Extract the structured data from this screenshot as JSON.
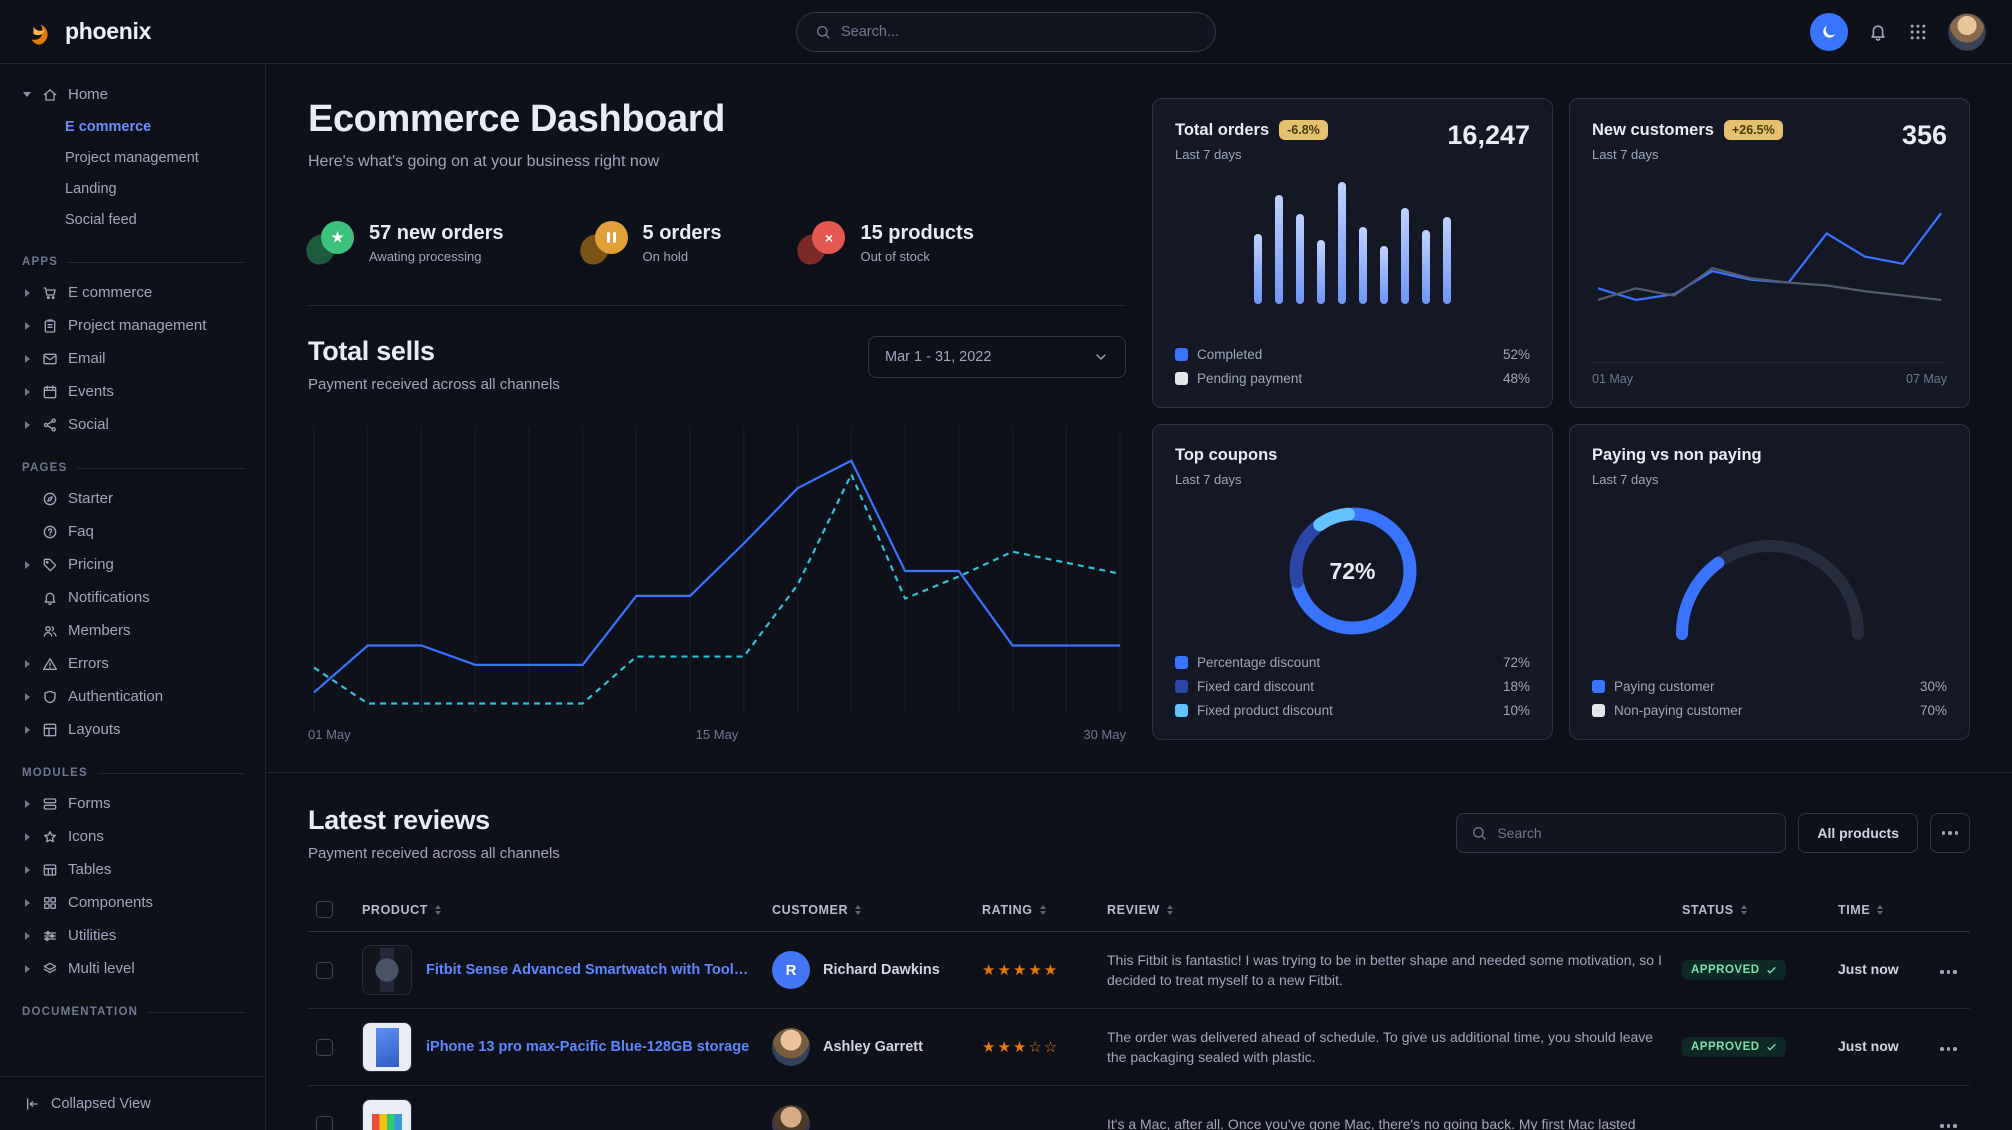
{
  "brand": {
    "name": "phoenix"
  },
  "topbar": {
    "search_placeholder": "Search..."
  },
  "page": {
    "title": "Ecommerce Dashboard",
    "subtitle": "Here's what's going on at your business right now"
  },
  "sidebar": {
    "sections": [
      {
        "label": "",
        "items": [
          {
            "label": "Home",
            "icon": "home",
            "caret": "down",
            "children": [
              {
                "label": "E commerce",
                "active": true
              },
              {
                "label": "Project management"
              },
              {
                "label": "Landing"
              },
              {
                "label": "Social feed"
              }
            ]
          }
        ]
      },
      {
        "label": "APPS",
        "items": [
          {
            "label": "E commerce",
            "icon": "cart",
            "caret": "right"
          },
          {
            "label": "Project management",
            "icon": "clipboard",
            "caret": "right"
          },
          {
            "label": "Email",
            "icon": "mail",
            "caret": "right"
          },
          {
            "label": "Events",
            "icon": "calendar",
            "caret": "right"
          },
          {
            "label": "Social",
            "icon": "share",
            "caret": "right"
          }
        ]
      },
      {
        "label": "PAGES",
        "items": [
          {
            "label": "Starter",
            "icon": "compass"
          },
          {
            "label": "Faq",
            "icon": "help"
          },
          {
            "label": "Pricing",
            "icon": "tag",
            "caret": "right"
          },
          {
            "label": "Notifications",
            "icon": "bell"
          },
          {
            "label": "Members",
            "icon": "users"
          },
          {
            "label": "Errors",
            "icon": "warning",
            "caret": "right"
          },
          {
            "label": "Authentication",
            "icon": "shield",
            "caret": "right"
          },
          {
            "label": "Layouts",
            "icon": "layout",
            "caret": "right"
          }
        ]
      },
      {
        "label": "MODULES",
        "items": [
          {
            "label": "Forms",
            "icon": "form",
            "caret": "right"
          },
          {
            "label": "Icons",
            "icon": "star",
            "caret": "right"
          },
          {
            "label": "Tables",
            "icon": "table",
            "caret": "right"
          },
          {
            "label": "Components",
            "icon": "grid",
            "caret": "right"
          },
          {
            "label": "Utilities",
            "icon": "sliders",
            "caret": "right"
          },
          {
            "label": "Multi level",
            "icon": "layers",
            "caret": "right"
          }
        ]
      },
      {
        "label": "DOCUMENTATION",
        "items": []
      }
    ],
    "footer": {
      "label": "Collapsed View",
      "icon": "collapse"
    }
  },
  "stats": [
    {
      "icon": "star",
      "color": "green",
      "title": "57 new orders",
      "subtitle": "Awating processing"
    },
    {
      "icon": "pause",
      "color": "orange",
      "title": "5 orders",
      "subtitle": "On hold"
    },
    {
      "icon": "x",
      "color": "red",
      "title": "15 products",
      "subtitle": "Out of stock"
    }
  ],
  "total_sells": {
    "title": "Total sells",
    "subtitle": "Payment received across all channels",
    "date_range": "Mar 1 - 31, 2022"
  },
  "cards": {
    "total_orders": {
      "title": "Total orders",
      "badge": "-6.8%",
      "period": "Last 7 days",
      "value": "16,247"
    },
    "new_customers": {
      "title": "New customers",
      "badge": "+26.5%",
      "period": "Last 7 days",
      "value": "356"
    },
    "top_coupons": {
      "title": "Top coupons",
      "period": "Last 7 days"
    },
    "paying": {
      "title": "Paying vs non paying",
      "period": "Last 7 days"
    }
  },
  "chart_data": [
    {
      "id": "total_sells",
      "type": "line",
      "title": "Total sells",
      "x_ticks": [
        "01 May",
        "15 May",
        "30 May"
      ],
      "ylim": [
        0,
        100
      ],
      "grid": "vertical",
      "series": [
        {
          "name": "current period",
          "style": "solid",
          "color": "#3874ff",
          "values": [
            6,
            23,
            23,
            16,
            16,
            16,
            41,
            41,
            60,
            80,
            90,
            50,
            50,
            23,
            23,
            23
          ]
        },
        {
          "name": "previous period",
          "style": "dashed",
          "color": "#2fc0d8",
          "values": [
            15,
            2,
            2,
            2,
            2,
            2,
            19,
            19,
            19,
            45,
            85,
            40,
            48,
            57,
            53,
            49
          ]
        }
      ]
    },
    {
      "id": "total_orders",
      "type": "bar",
      "ylim": [
        0,
        100
      ],
      "values": [
        55,
        85,
        70,
        50,
        95,
        60,
        45,
        75,
        58,
        68
      ],
      "legend": [
        {
          "label": "Completed",
          "value": 52,
          "color": "#3874ff"
        },
        {
          "label": "Pending payment",
          "value": 48,
          "color": "#e3e6ed"
        }
      ]
    },
    {
      "id": "new_customers",
      "type": "line",
      "x_ticks": [
        "01 May",
        "07 May"
      ],
      "ylim": [
        0,
        100
      ],
      "series": [
        {
          "name": "new customers",
          "style": "solid",
          "color": "#3874ff",
          "values": [
            38,
            30,
            34,
            50,
            44,
            42,
            76,
            60,
            55,
            90
          ]
        },
        {
          "name": "previous period",
          "style": "solid",
          "color": "#525b70",
          "values": [
            30,
            38,
            33,
            52,
            45,
            42,
            40,
            36,
            33,
            30
          ]
        }
      ]
    },
    {
      "id": "top_coupons",
      "type": "donut",
      "center_label": "72%",
      "segments": [
        {
          "label": "Percentage discount",
          "value": 72,
          "color": "#3874ff"
        },
        {
          "label": "Fixed card discount",
          "value": 18,
          "color": "#2c46a8"
        },
        {
          "label": "Fixed product discount",
          "value": 10,
          "color": "#62c1ff"
        }
      ]
    },
    {
      "id": "paying_gauge",
      "type": "gauge",
      "segments": [
        {
          "label": "Paying customer",
          "value": 30,
          "color": "#3874ff"
        },
        {
          "label": "Non-paying customer",
          "value": 70,
          "color": "#e3e6ed"
        }
      ]
    }
  ],
  "reviews": {
    "title": "Latest reviews",
    "subtitle": "Payment received across all channels",
    "search_placeholder": "Search",
    "filter_button": "All products",
    "columns": [
      "PRODUCT",
      "CUSTOMER",
      "RATING",
      "REVIEW",
      "STATUS",
      "TIME"
    ],
    "rows": [
      {
        "thumb": "watch",
        "product": "Fitbit Sense Advanced Smartwatch with Tools fo...",
        "customer": "Richard Dawkins",
        "avatar_type": "initial",
        "avatar_text": "R",
        "rating": 5,
        "review": "This Fitbit is fantastic! I was trying to be in better shape and needed some motivation, so I decided to treat myself to a new Fitbit.",
        "status": "APPROVED",
        "time": "Just now"
      },
      {
        "thumb": "iphone",
        "product": "iPhone 13 pro max-Pacific Blue-128GB storage",
        "customer": "Ashley Garrett",
        "avatar_type": "photo1",
        "avatar_text": "",
        "rating": 3,
        "review": "The order was delivered ahead of schedule. To give us additional time, you should leave the packaging sealed with plastic.",
        "status": "APPROVED",
        "time": "Just now"
      },
      {
        "thumb": "macbook",
        "product": "",
        "customer": "",
        "avatar_type": "photo2",
        "avatar_text": "",
        "rating": 0,
        "review": "It's a Mac, after all. Once you've gone Mac, there's no going back. My first Mac lasted",
        "status": "",
        "time": ""
      }
    ]
  }
}
